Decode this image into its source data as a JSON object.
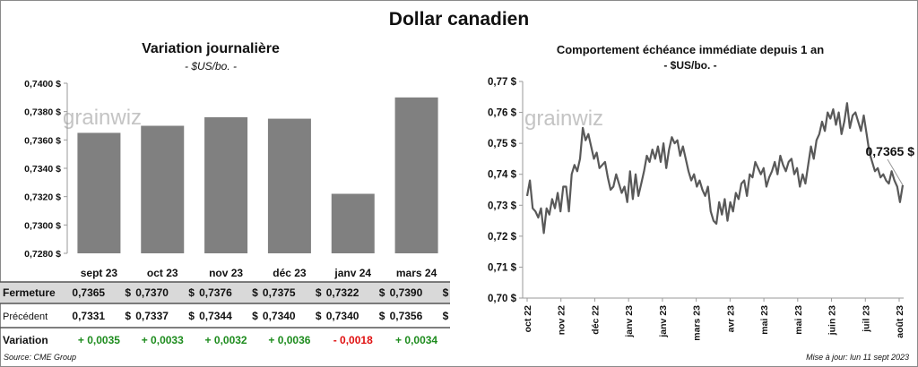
{
  "page": {
    "title": "Dollar canadien",
    "source": "Source: CME Group",
    "updated": "Mise à jour: lun 11 sept 2023"
  },
  "left_panel": {
    "title": "Variation  journalière",
    "subtitle": "- $US/bo. -",
    "watermark": "grainwiz",
    "table": {
      "rows": [
        {
          "label": "Fermeture",
          "values": [
            "0,7365",
            "0,7370",
            "0,7376",
            "0,7375",
            "0,7322",
            "0,7390"
          ],
          "unit": "$"
        },
        {
          "label": "Précédent",
          "values": [
            "0,7331",
            "0,7337",
            "0,7344",
            "0,7340",
            "0,7340",
            "0,7356"
          ],
          "unit": "$"
        },
        {
          "label": "Variation",
          "values": [
            "+ 0,0035",
            "+ 0,0033",
            "+ 0,0032",
            "+ 0,0036",
            "- 0,0018",
            "+ 0,0034"
          ]
        }
      ],
      "colors": {
        "positive": "#1e8c1e",
        "negative": "#e01010",
        "header_bg": "#d9d9d9"
      }
    }
  },
  "right_panel": {
    "title": "Comportement échéance immédiate depuis 1 an",
    "subtitle": "- $US/bo. -",
    "watermark": "grainwiz",
    "last_label": "0,7365 $"
  },
  "chart_data": [
    {
      "type": "bar",
      "categories": [
        "sept 23",
        "oct 23",
        "nov 23",
        "déc 23",
        "janv 24",
        "mars 24"
      ],
      "values": [
        0.7365,
        0.737,
        0.7376,
        0.7375,
        0.7322,
        0.739
      ],
      "ylim": [
        0.728,
        0.74
      ],
      "yticks": [
        "0,7280 $",
        "0,7300 $",
        "0,7320 $",
        "0,7340 $",
        "0,7360 $",
        "0,7380 $",
        "0,7400 $"
      ],
      "grid": false,
      "color": "#808080"
    },
    {
      "type": "line",
      "ylim": [
        0.7,
        0.77
      ],
      "yticks": [
        "0,70 $",
        "0,71 $",
        "0,72 $",
        "0,73 $",
        "0,74 $",
        "0,75 $",
        "0,76 $",
        "0,77 $"
      ],
      "xticks": [
        "oct 22",
        "nov 22",
        "déc 22",
        "janv 23",
        "janv 23",
        "mars 23",
        "avr 23",
        "mai 23",
        "mai 23",
        "juin 23",
        "juil 23",
        "août 23"
      ],
      "grid": false,
      "color": "#595959",
      "values": [
        0.733,
        0.738,
        0.729,
        0.728,
        0.726,
        0.729,
        0.721,
        0.729,
        0.727,
        0.732,
        0.729,
        0.734,
        0.728,
        0.736,
        0.736,
        0.728,
        0.74,
        0.743,
        0.741,
        0.745,
        0.755,
        0.751,
        0.753,
        0.749,
        0.745,
        0.747,
        0.742,
        0.743,
        0.744,
        0.739,
        0.735,
        0.736,
        0.74,
        0.737,
        0.734,
        0.736,
        0.731,
        0.741,
        0.732,
        0.74,
        0.733,
        0.737,
        0.741,
        0.746,
        0.744,
        0.748,
        0.745,
        0.749,
        0.744,
        0.75,
        0.742,
        0.748,
        0.752,
        0.75,
        0.751,
        0.746,
        0.749,
        0.745,
        0.741,
        0.738,
        0.74,
        0.736,
        0.738,
        0.735,
        0.733,
        0.736,
        0.728,
        0.725,
        0.724,
        0.731,
        0.727,
        0.732,
        0.725,
        0.731,
        0.728,
        0.734,
        0.732,
        0.737,
        0.738,
        0.733,
        0.74,
        0.739,
        0.744,
        0.742,
        0.74,
        0.742,
        0.736,
        0.739,
        0.741,
        0.744,
        0.74,
        0.746,
        0.743,
        0.741,
        0.744,
        0.745,
        0.74,
        0.742,
        0.736,
        0.74,
        0.737,
        0.743,
        0.749,
        0.745,
        0.751,
        0.753,
        0.757,
        0.754,
        0.76,
        0.758,
        0.761,
        0.756,
        0.76,
        0.753,
        0.757,
        0.763,
        0.755,
        0.759,
        0.76,
        0.757,
        0.754,
        0.759,
        0.753,
        0.747,
        0.744,
        0.741,
        0.742,
        0.739,
        0.74,
        0.738,
        0.737,
        0.741,
        0.738,
        0.736,
        0.731,
        0.7365
      ]
    }
  ]
}
